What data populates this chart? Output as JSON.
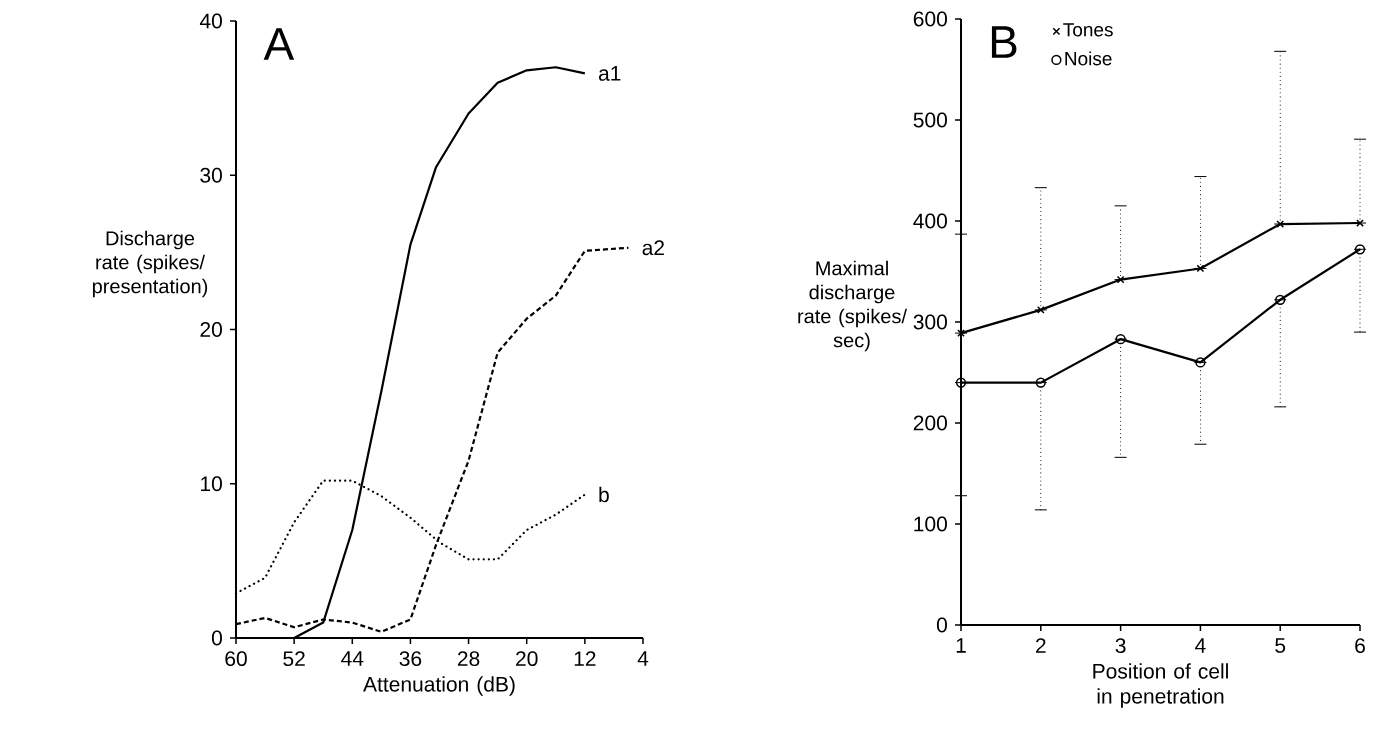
{
  "chart_data": [
    {
      "type": "line",
      "title": "A",
      "xlabel": "Attenuation (dB)",
      "ylabel": "Discharge rate (spikes/ presentation)",
      "xlim": [
        60,
        4
      ],
      "xticks": [
        60,
        52,
        44,
        36,
        28,
        20,
        12,
        4
      ],
      "ylim": [
        0,
        40
      ],
      "yticks": [
        0,
        10,
        20,
        30,
        40
      ],
      "series": [
        {
          "name": "a1",
          "color": "#000000",
          "line_style": "solid",
          "x": [
            52,
            48,
            44,
            40,
            36,
            32.5,
            28,
            24,
            20,
            16,
            12
          ],
          "values": [
            0,
            1,
            7,
            16,
            25.5,
            30.5,
            34,
            36,
            36.8,
            37,
            36.6
          ]
        },
        {
          "name": "a2",
          "color": "#000000",
          "line_style": "dashed",
          "x": [
            60,
            56,
            52,
            48,
            44,
            40,
            36,
            32.5,
            28,
            24,
            20,
            16,
            12,
            6
          ],
          "values": [
            0.9,
            1.3,
            0.7,
            1.2,
            1,
            0.4,
            1.2,
            6,
            11.5,
            18.5,
            20.7,
            22.2,
            25.1,
            25.3
          ]
        },
        {
          "name": "b",
          "color": "#000000",
          "line_style": "dotted",
          "x": [
            60,
            56,
            52,
            48,
            44,
            40,
            36,
            32,
            28,
            24,
            20,
            16,
            12
          ],
          "values": [
            2.9,
            3.9,
            7.5,
            10.2,
            10.2,
            9.2,
            7.8,
            6.2,
            5.1,
            5.1,
            7,
            8,
            9.3
          ]
        }
      ]
    },
    {
      "type": "line",
      "title": "B",
      "xlabel": "Position of cell in penetration",
      "ylabel": "Maximal discharge rate (spikes/ sec)",
      "x": [
        1,
        2,
        3,
        4,
        5,
        6
      ],
      "xlim": [
        1,
        6
      ],
      "xticks": [
        1,
        2,
        3,
        4,
        5,
        6
      ],
      "ylim": [
        0,
        600
      ],
      "yticks": [
        0,
        100,
        200,
        300,
        400,
        500,
        600
      ],
      "legend": "top left",
      "series": [
        {
          "name": "Tones",
          "color": "#000000",
          "marker": "cross",
          "line_style": "solid",
          "values": [
            289,
            312,
            342,
            353,
            397,
            398
          ],
          "errors": [
            [
              289,
              387
            ],
            [
              312,
              433
            ],
            [
              342,
              415
            ],
            [
              353,
              444
            ],
            [
              397,
              568
            ],
            [
              398,
              481
            ]
          ]
        },
        {
          "name": "Noise",
          "color": "#000000",
          "marker": "circle",
          "line_style": "solid",
          "values": [
            240,
            240,
            283,
            260,
            322,
            372
          ],
          "errors": [
            [
              128,
              240
            ],
            [
              114,
              240
            ],
            [
              166,
              283
            ],
            [
              179,
              260
            ],
            [
              216,
              322
            ],
            [
              290,
              372
            ]
          ]
        }
      ]
    }
  ]
}
